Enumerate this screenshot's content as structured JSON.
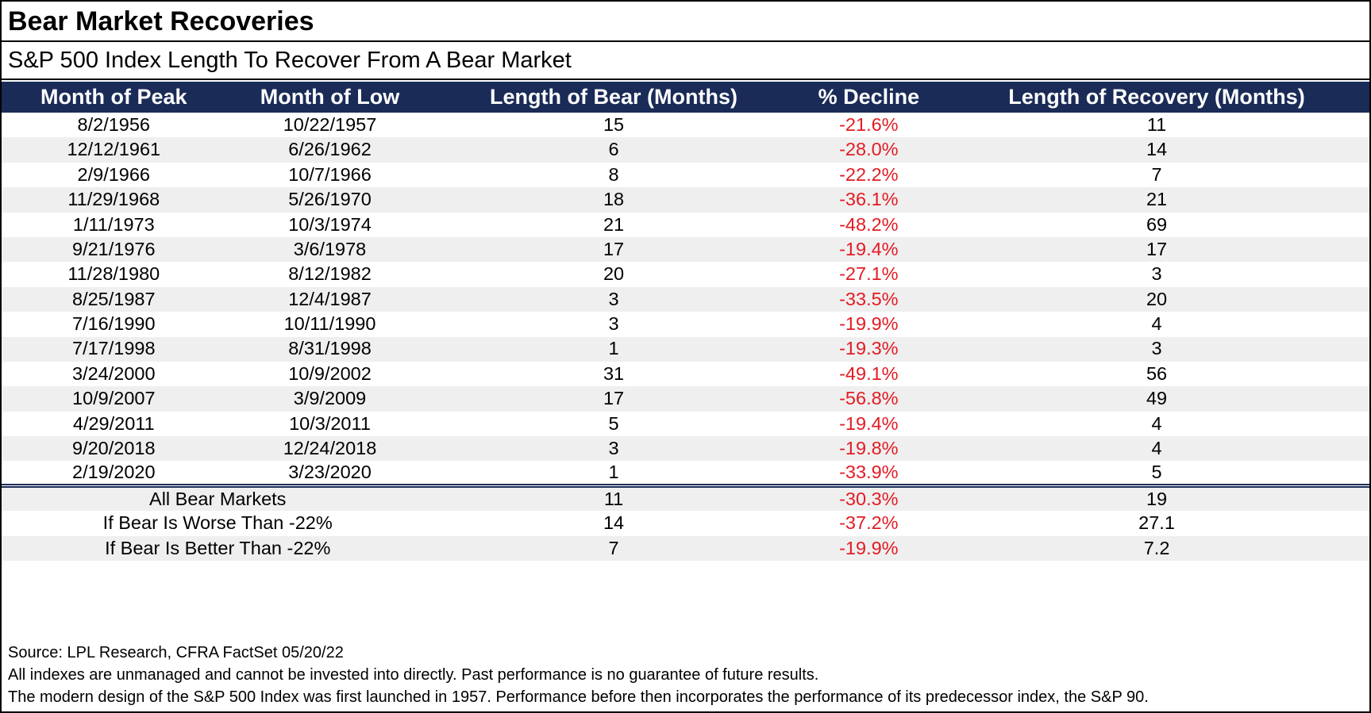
{
  "colors": {
    "header_bg": "#1a2b57",
    "decline_red": "#e31b23",
    "row_alt_bg": "#efefef"
  },
  "header": {
    "title": "Bear Market Recoveries",
    "subtitle": "S&P 500 Index Length To Recover From A Bear Market"
  },
  "table": {
    "columns": [
      "Month of Peak",
      "Month of Low",
      "Length of Bear (Months)",
      "% Decline",
      "Length of Recovery (Months)"
    ],
    "rows": [
      [
        "8/2/1956",
        "10/22/1957",
        "15",
        "-21.6%",
        "11"
      ],
      [
        "12/12/1961",
        "6/26/1962",
        "6",
        "-28.0%",
        "14"
      ],
      [
        "2/9/1966",
        "10/7/1966",
        "8",
        "-22.2%",
        "7"
      ],
      [
        "11/29/1968",
        "5/26/1970",
        "18",
        "-36.1%",
        "21"
      ],
      [
        "1/11/1973",
        "10/3/1974",
        "21",
        "-48.2%",
        "69"
      ],
      [
        "9/21/1976",
        "3/6/1978",
        "17",
        "-19.4%",
        "17"
      ],
      [
        "11/28/1980",
        "8/12/1982",
        "20",
        "-27.1%",
        "3"
      ],
      [
        "8/25/1987",
        "12/4/1987",
        "3",
        "-33.5%",
        "20"
      ],
      [
        "7/16/1990",
        "10/11/1990",
        "3",
        "-19.9%",
        "4"
      ],
      [
        "7/17/1998",
        "8/31/1998",
        "1",
        "-19.3%",
        "3"
      ],
      [
        "3/24/2000",
        "10/9/2002",
        "31",
        "-49.1%",
        "56"
      ],
      [
        "10/9/2007",
        "3/9/2009",
        "17",
        "-56.8%",
        "49"
      ],
      [
        "4/29/2011",
        "10/3/2011",
        "5",
        "-19.4%",
        "4"
      ],
      [
        "9/20/2018",
        "12/24/2018",
        "3",
        "-19.8%",
        "4"
      ],
      [
        "2/19/2020",
        "3/23/2020",
        "1",
        "-33.9%",
        "5"
      ]
    ],
    "summary_rows": [
      [
        "All Bear Markets",
        "11",
        "-30.3%",
        "19"
      ],
      [
        "If Bear Is Worse Than -22%",
        "14",
        "-37.2%",
        "27.1"
      ],
      [
        "If Bear Is Better Than -22%",
        "7",
        "-19.9%",
        "7.2"
      ]
    ]
  },
  "footer": {
    "lines": [
      "Source: LPL Research, CFRA FactSet 05/20/22",
      "All indexes are unmanaged and cannot be invested into directly. Past performance is no guarantee of future results.",
      "The modern design of the S&P 500 Index was first launched in 1957. Performance before then incorporates the performance of its predecessor index, the S&P 90."
    ]
  },
  "chart_data": {
    "type": "table",
    "title": "Bear Market Recoveries",
    "subtitle": "S&P 500 Index Length To Recover From A Bear Market",
    "columns": [
      "Month of Peak",
      "Month of Low",
      "Length of Bear (Months)",
      "% Decline",
      "Length of Recovery (Months)"
    ],
    "rows": [
      [
        "8/2/1956",
        "10/22/1957",
        15,
        -21.6,
        11
      ],
      [
        "12/12/1961",
        "6/26/1962",
        6,
        -28.0,
        14
      ],
      [
        "2/9/1966",
        "10/7/1966",
        8,
        -22.2,
        7
      ],
      [
        "11/29/1968",
        "5/26/1970",
        18,
        -36.1,
        21
      ],
      [
        "1/11/1973",
        "10/3/1974",
        21,
        -48.2,
        69
      ],
      [
        "9/21/1976",
        "3/6/1978",
        17,
        -19.4,
        17
      ],
      [
        "11/28/1980",
        "8/12/1982",
        20,
        -27.1,
        3
      ],
      [
        "8/25/1987",
        "12/4/1987",
        3,
        -33.5,
        20
      ],
      [
        "7/16/1990",
        "10/11/1990",
        3,
        -19.9,
        4
      ],
      [
        "7/17/1998",
        "8/31/1998",
        1,
        -19.3,
        3
      ],
      [
        "3/24/2000",
        "10/9/2002",
        31,
        -49.1,
        56
      ],
      [
        "10/9/2007",
        "3/9/2009",
        17,
        -56.8,
        49
      ],
      [
        "4/29/2011",
        "10/3/2011",
        5,
        -19.4,
        4
      ],
      [
        "9/20/2018",
        "12/24/2018",
        3,
        -19.8,
        4
      ],
      [
        "2/19/2020",
        "3/23/2020",
        1,
        -33.9,
        5
      ]
    ],
    "summary": [
      {
        "label": "All Bear Markets",
        "length_of_bear_months": 11,
        "pct_decline": -30.3,
        "length_of_recovery_months": 19
      },
      {
        "label": "If Bear Is Worse Than -22%",
        "length_of_bear_months": 14,
        "pct_decline": -37.2,
        "length_of_recovery_months": 27.1
      },
      {
        "label": "If Bear Is Better Than -22%",
        "length_of_bear_months": 7,
        "pct_decline": -19.9,
        "length_of_recovery_months": 7.2
      }
    ],
    "source": "LPL Research, CFRA FactSet 05/20/22"
  }
}
